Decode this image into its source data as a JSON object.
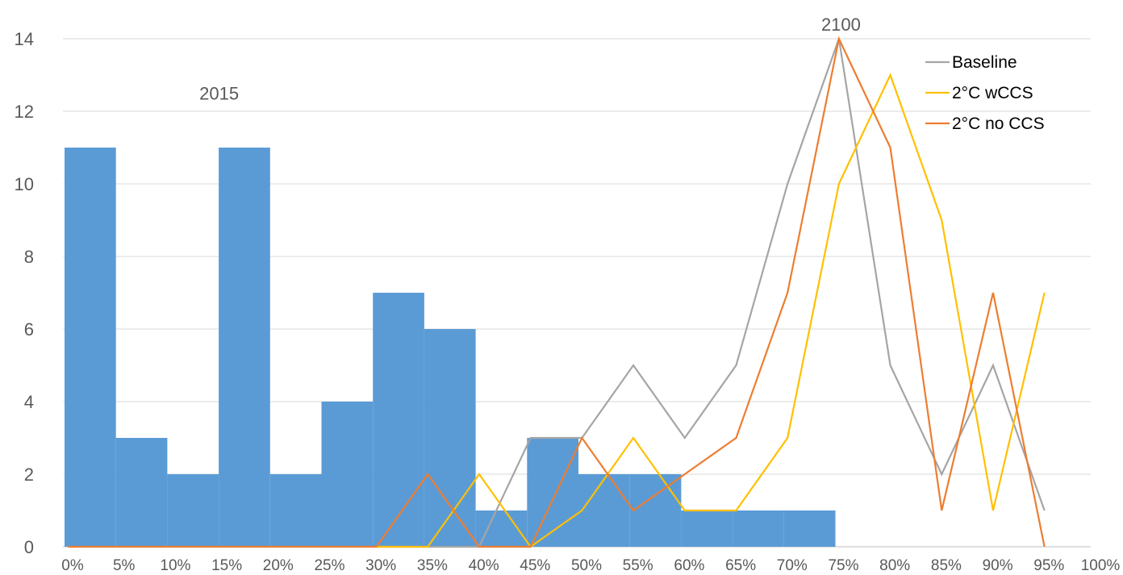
{
  "chart_data": {
    "type": "bar",
    "x_tick_labels": [
      "0%",
      "5%",
      "10%",
      "15%",
      "20%",
      "25%",
      "30%",
      "35%",
      "40%",
      "45%",
      "50%",
      "55%",
      "60%",
      "65%",
      "70%",
      "75%",
      "80%",
      "85%",
      "90%",
      "95%",
      "100%"
    ],
    "y_ticks": [
      "0",
      "2",
      "4",
      "6",
      "8",
      "10",
      "12",
      "14"
    ],
    "ylim": [
      0,
      14
    ],
    "grid": "horizontal",
    "legend_position": "top-right",
    "annotations": [
      {
        "text": "2015",
        "x": 15.2,
        "y": 12.5
      },
      {
        "text": "2100",
        "x": 75.7,
        "y": 14.4
      }
    ],
    "bars": {
      "color": "#5B9BD5",
      "bin_width": 5,
      "bin_starts": [
        0,
        5,
        10,
        15,
        20,
        25,
        30,
        35,
        40,
        45,
        50,
        55,
        60,
        65,
        70
      ],
      "values": [
        11,
        3,
        2,
        11,
        2,
        4,
        7,
        6,
        1,
        3,
        2,
        2,
        1,
        1,
        1
      ]
    },
    "series": [
      {
        "name": "Baseline",
        "color": "#A5A5A5",
        "x": [
          30,
          35,
          40,
          45,
          50,
          55,
          60,
          65,
          70,
          75,
          80,
          85,
          90,
          95
        ],
        "values": [
          0,
          0,
          0,
          3,
          3,
          5,
          3,
          5,
          10,
          14,
          5,
          2,
          5,
          1
        ]
      },
      {
        "name": "2°C wCCS",
        "color": "#FFC000",
        "x": [
          30,
          35,
          40,
          45,
          50,
          55,
          60,
          65,
          70,
          75,
          80,
          85,
          90,
          95
        ],
        "values": [
          0,
          0,
          2,
          0,
          1,
          3,
          1,
          1,
          3,
          10,
          13,
          9,
          1,
          7
        ]
      },
      {
        "name": "2°C no CCS",
        "color": "#ED7D31",
        "x": [
          0,
          30,
          35,
          40,
          45,
          50,
          55,
          60,
          65,
          70,
          75,
          80,
          85,
          90,
          95
        ],
        "values": [
          0,
          0,
          2,
          0,
          0,
          3,
          1,
          2,
          3,
          7,
          14,
          11,
          1,
          7,
          0
        ]
      }
    ]
  }
}
